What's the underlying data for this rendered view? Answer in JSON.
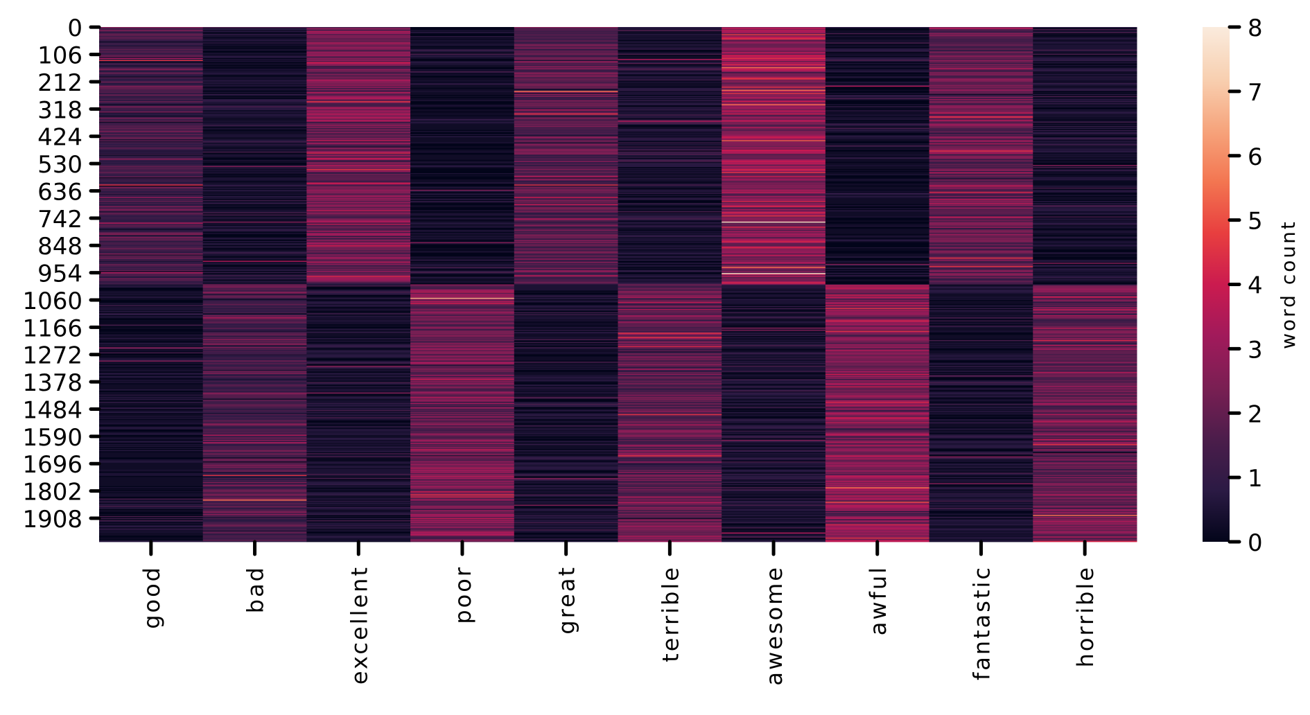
{
  "chart_data": {
    "type": "heatmap",
    "x_categories": [
      "good",
      "bad",
      "excellent",
      "poor",
      "great",
      "terrible",
      "awesome",
      "awful",
      "fantastic",
      "horrible"
    ],
    "y_tick_labels": [
      "0",
      "106",
      "212",
      "318",
      "424",
      "530",
      "636",
      "742",
      "848",
      "954",
      "1060",
      "1166",
      "1272",
      "1378",
      "1484",
      "1590",
      "1696",
      "1802",
      "1908"
    ],
    "n_rows": 2000,
    "positive_block_rows": [
      0,
      999
    ],
    "negative_block_rows": [
      1000,
      1999
    ],
    "column_means": {
      "first_half": [
        1.3,
        0.4,
        2.3,
        0.3,
        1.8,
        0.5,
        2.8,
        0.3,
        2.1,
        0.4
      ],
      "second_half": [
        0.3,
        1.5,
        0.4,
        2.3,
        0.4,
        2.0,
        0.5,
        2.6,
        0.4,
        2.1
      ]
    },
    "title": "",
    "xlabel": "",
    "ylabel": "",
    "colorbar": {
      "label": "word count",
      "range": [
        0,
        8
      ],
      "ticks": [
        "0",
        "1",
        "2",
        "3",
        "4",
        "5",
        "6",
        "7",
        "8"
      ],
      "colormap": "rocket"
    },
    "colors": {
      "stops": [
        "#03051a",
        "#2b1a44",
        "#4c1d4b",
        "#7a1f53",
        "#a11a5b",
        "#cb1b4f",
        "#e83f3f",
        "#f37651",
        "#f6a47c",
        "#f8d0b1",
        "#faebdd"
      ]
    }
  }
}
